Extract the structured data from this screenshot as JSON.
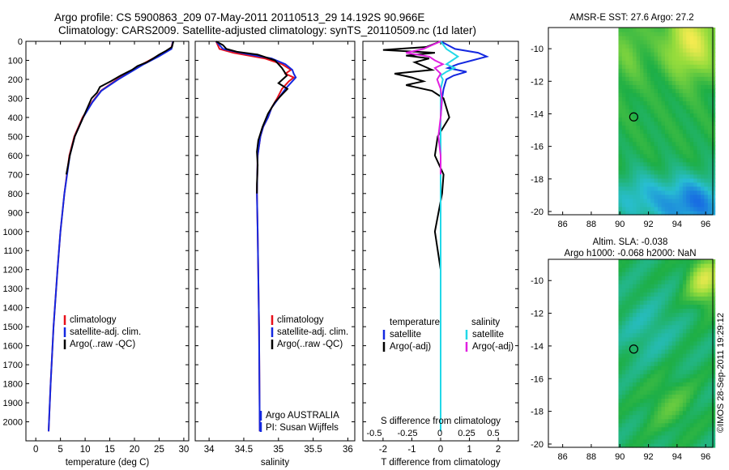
{
  "header": {
    "line1": "Argo profile: CS 5900863_209 07-May-2011 20110513_29 14.192S 90.966E",
    "line2": "Climatology: CARS2009. Satellite-adjusted climatology: synTS_20110509.nc (1d later)"
  },
  "colors": {
    "climatology": "#e8101a",
    "satellite": "#1428e0",
    "argo": "#000000",
    "sat_salinity": "#22d8e8",
    "argo_salinity": "#e020e0"
  },
  "chart_data": [
    {
      "id": "temperature",
      "type": "line",
      "xlabel": "temperature (deg C)",
      "ylabel": "",
      "xlim": [
        -2,
        31
      ],
      "ylim": [
        2100,
        0
      ],
      "xticks": [
        "0",
        "5",
        "10",
        "15",
        "20",
        "25",
        "30"
      ],
      "yticks": [
        "0",
        "100",
        "200",
        "300",
        "400",
        "500",
        "600",
        "700",
        "800",
        "900",
        "1000",
        "1100",
        "1200",
        "1300",
        "1400",
        "1500",
        "1600",
        "1700",
        "1800",
        "1900",
        "2000"
      ],
      "legend": [
        "climatology",
        "satellite-adj. clim.",
        "Argo(..raw -QC)"
      ],
      "series": [
        {
          "name": "climatology",
          "depth": [
            0,
            40,
            80,
            120,
            160,
            200,
            260,
            320,
            400,
            500,
            600,
            800,
            1000,
            1200,
            1500,
            1800,
            2050
          ],
          "values": [
            27.8,
            27.4,
            24.5,
            21.6,
            19.0,
            16.5,
            13.2,
            11.4,
            9.5,
            7.8,
            6.8,
            5.8,
            5.0,
            4.4,
            3.6,
            3.0,
            2.6
          ]
        },
        {
          "name": "satellite-adj. clim.",
          "depth": [
            0,
            40,
            80,
            120,
            160,
            200,
            260,
            320,
            400,
            500,
            600,
            800,
            1000,
            1200,
            1500,
            1800,
            2050
          ],
          "values": [
            27.8,
            27.5,
            24.9,
            21.9,
            19.3,
            16.7,
            13.3,
            11.5,
            9.6,
            7.9,
            6.9,
            5.8,
            5.0,
            4.4,
            3.6,
            3.0,
            2.6
          ]
        },
        {
          "name": "Argo(..raw -QC)",
          "depth": [
            0,
            30,
            50,
            70,
            90,
            110,
            130,
            150,
            180,
            210,
            240,
            270,
            300,
            400,
            500,
            600,
            700
          ],
          "values": [
            27.9,
            27.6,
            26.4,
            25.0,
            23.8,
            22.5,
            20.6,
            19.5,
            17.2,
            15.2,
            13.0,
            12.4,
            11.3,
            9.6,
            7.9,
            6.9,
            6.2
          ]
        }
      ]
    },
    {
      "id": "salinity",
      "type": "line",
      "xlabel": "salinity",
      "ylabel": "",
      "xlim": [
        33.8,
        36.1
      ],
      "ylim": [
        2100,
        0
      ],
      "xticks": [
        "34",
        "34.5",
        "35",
        "35.5",
        "36"
      ],
      "legend": [
        "climatology",
        "satellite-adj. clim.",
        "Argo(..raw -QC)"
      ],
      "annotation": [
        "Argo AUSTRALIA",
        "PI: Susan Wijffels"
      ],
      "series": [
        {
          "name": "climatology",
          "depth": [
            0,
            40,
            60,
            90,
            120,
            150,
            170,
            190,
            210,
            250,
            300,
            350,
            400,
            450,
            500,
            600,
            800,
            1000,
            1500,
            2050
          ],
          "values": [
            34.1,
            34.15,
            34.35,
            34.8,
            35.05,
            35.18,
            35.1,
            35.22,
            35.15,
            35.05,
            34.98,
            34.9,
            34.85,
            34.78,
            34.74,
            34.7,
            34.69,
            34.7,
            34.72,
            34.73
          ]
        },
        {
          "name": "satellite-adj. clim.",
          "depth": [
            0,
            40,
            60,
            90,
            120,
            150,
            170,
            190,
            210,
            250,
            300,
            350,
            400,
            450,
            500,
            600,
            800,
            1000,
            1500,
            2050
          ],
          "values": [
            34.1,
            34.2,
            34.45,
            34.9,
            35.1,
            35.2,
            35.22,
            35.25,
            35.2,
            35.1,
            35.0,
            34.9,
            34.85,
            34.78,
            34.74,
            34.7,
            34.69,
            34.7,
            34.72,
            34.73
          ]
        },
        {
          "name": "Argo(..raw -QC)",
          "depth": [
            0,
            20,
            40,
            55,
            70,
            100,
            140,
            180,
            220,
            250,
            280,
            320,
            380,
            450,
            520,
            580,
            650,
            750,
            800
          ],
          "values": [
            34.1,
            34.2,
            34.25,
            34.4,
            34.7,
            34.95,
            35.05,
            35.12,
            35.0,
            35.13,
            35.05,
            34.95,
            34.85,
            34.77,
            34.71,
            34.69,
            34.7,
            34.69,
            34.69
          ]
        }
      ]
    },
    {
      "id": "difference",
      "type": "line",
      "xlabel": "T difference from climatology",
      "xlabel_top": "S difference from climatology",
      "xlim": [
        -2.7,
        2.7
      ],
      "ylim": [
        2100,
        0
      ],
      "xticks": [
        "-2",
        "-1",
        "0",
        "1",
        "2"
      ],
      "xticks_top": [
        "-0.5",
        "-0.25",
        "0",
        "0.25",
        "0.5"
      ],
      "legend_titles": [
        "temperature",
        "salinity"
      ],
      "legend": [
        "satellite",
        "Argo(-adj)",
        "satellite",
        "Argo(-adj)"
      ],
      "series": [
        {
          "name": "temperature satellite",
          "depth": [
            0,
            40,
            60,
            80,
            100,
            120,
            140,
            160,
            180,
            200,
            250,
            300,
            400,
            600,
            1000,
            1500,
            2050
          ],
          "values": [
            0,
            0.5,
            1.3,
            1.6,
            1.1,
            0.6,
            0.25,
            0.9,
            0.45,
            0.2,
            0.1,
            0.05,
            0.0,
            0.0,
            0.0,
            0.0,
            0.0
          ]
        },
        {
          "name": "temperature Argo(-adj)",
          "depth": [
            0,
            30,
            45,
            60,
            75,
            90,
            110,
            130,
            150,
            170,
            190,
            210,
            230,
            260,
            300,
            400,
            500,
            600,
            700,
            800,
            1000,
            1200
          ],
          "values": [
            0,
            -0.5,
            -2.0,
            -0.2,
            -1.2,
            -0.4,
            -0.9,
            -0.6,
            -0.3,
            -1.6,
            -1.0,
            -0.6,
            -1.2,
            -0.3,
            0.1,
            0.3,
            -0.1,
            -0.2,
            0.1,
            0.05,
            -0.2,
            0.0
          ]
        },
        {
          "name": "salinity satellite",
          "depth": [
            0,
            40,
            60,
            80,
            100,
            120,
            140,
            160,
            180,
            200,
            250,
            300,
            400,
            600,
            1000,
            1500,
            2050
          ],
          "values": [
            0,
            0.05,
            0.1,
            0.15,
            0.1,
            0.05,
            0.12,
            0.05,
            0.0,
            0.02,
            0.0,
            0.0,
            0.0,
            0.0,
            0.0,
            0.0,
            0.0
          ]
        },
        {
          "name": "salinity Argo(-adj)",
          "depth": [
            0,
            40,
            60,
            80,
            100,
            120,
            140,
            170,
            200,
            250,
            300,
            400,
            500,
            600,
            700
          ],
          "values": [
            0,
            -0.15,
            -0.3,
            -0.1,
            -0.05,
            0.02,
            -0.05,
            0.0,
            -0.03,
            0.0,
            0.01,
            0.0,
            -0.02,
            0.0,
            0.0
          ]
        }
      ]
    },
    {
      "id": "sst-map",
      "type": "heatmap",
      "title": "AMSR-E SST: 27.6  Argo: 27.2",
      "xlim": [
        85,
        96.5
      ],
      "ylim": [
        -20.2,
        -8.7
      ],
      "xticks": [
        "86",
        "88",
        "90",
        "92",
        "94",
        "96"
      ],
      "yticks": [
        "-10",
        "-12",
        "-14",
        "-16",
        "-18",
        "-20"
      ],
      "marker": {
        "lon": 90.97,
        "lat": -14.19
      }
    },
    {
      "id": "sla-map",
      "type": "heatmap",
      "title_line1": "Altim. SLA: -0.038",
      "title_line2": "Argo h1000: -0.068 h2000: NaN",
      "xlim": [
        85,
        96.5
      ],
      "ylim": [
        -20.2,
        -8.7
      ],
      "xticks": [
        "86",
        "88",
        "90",
        "92",
        "94",
        "96"
      ],
      "yticks": [
        "-10",
        "-12",
        "-14",
        "-16",
        "-18",
        "-20"
      ],
      "marker": {
        "lon": 90.97,
        "lat": -14.19
      }
    }
  ],
  "watermark": "©IMOS 28-Sep-2011 19:29:12"
}
